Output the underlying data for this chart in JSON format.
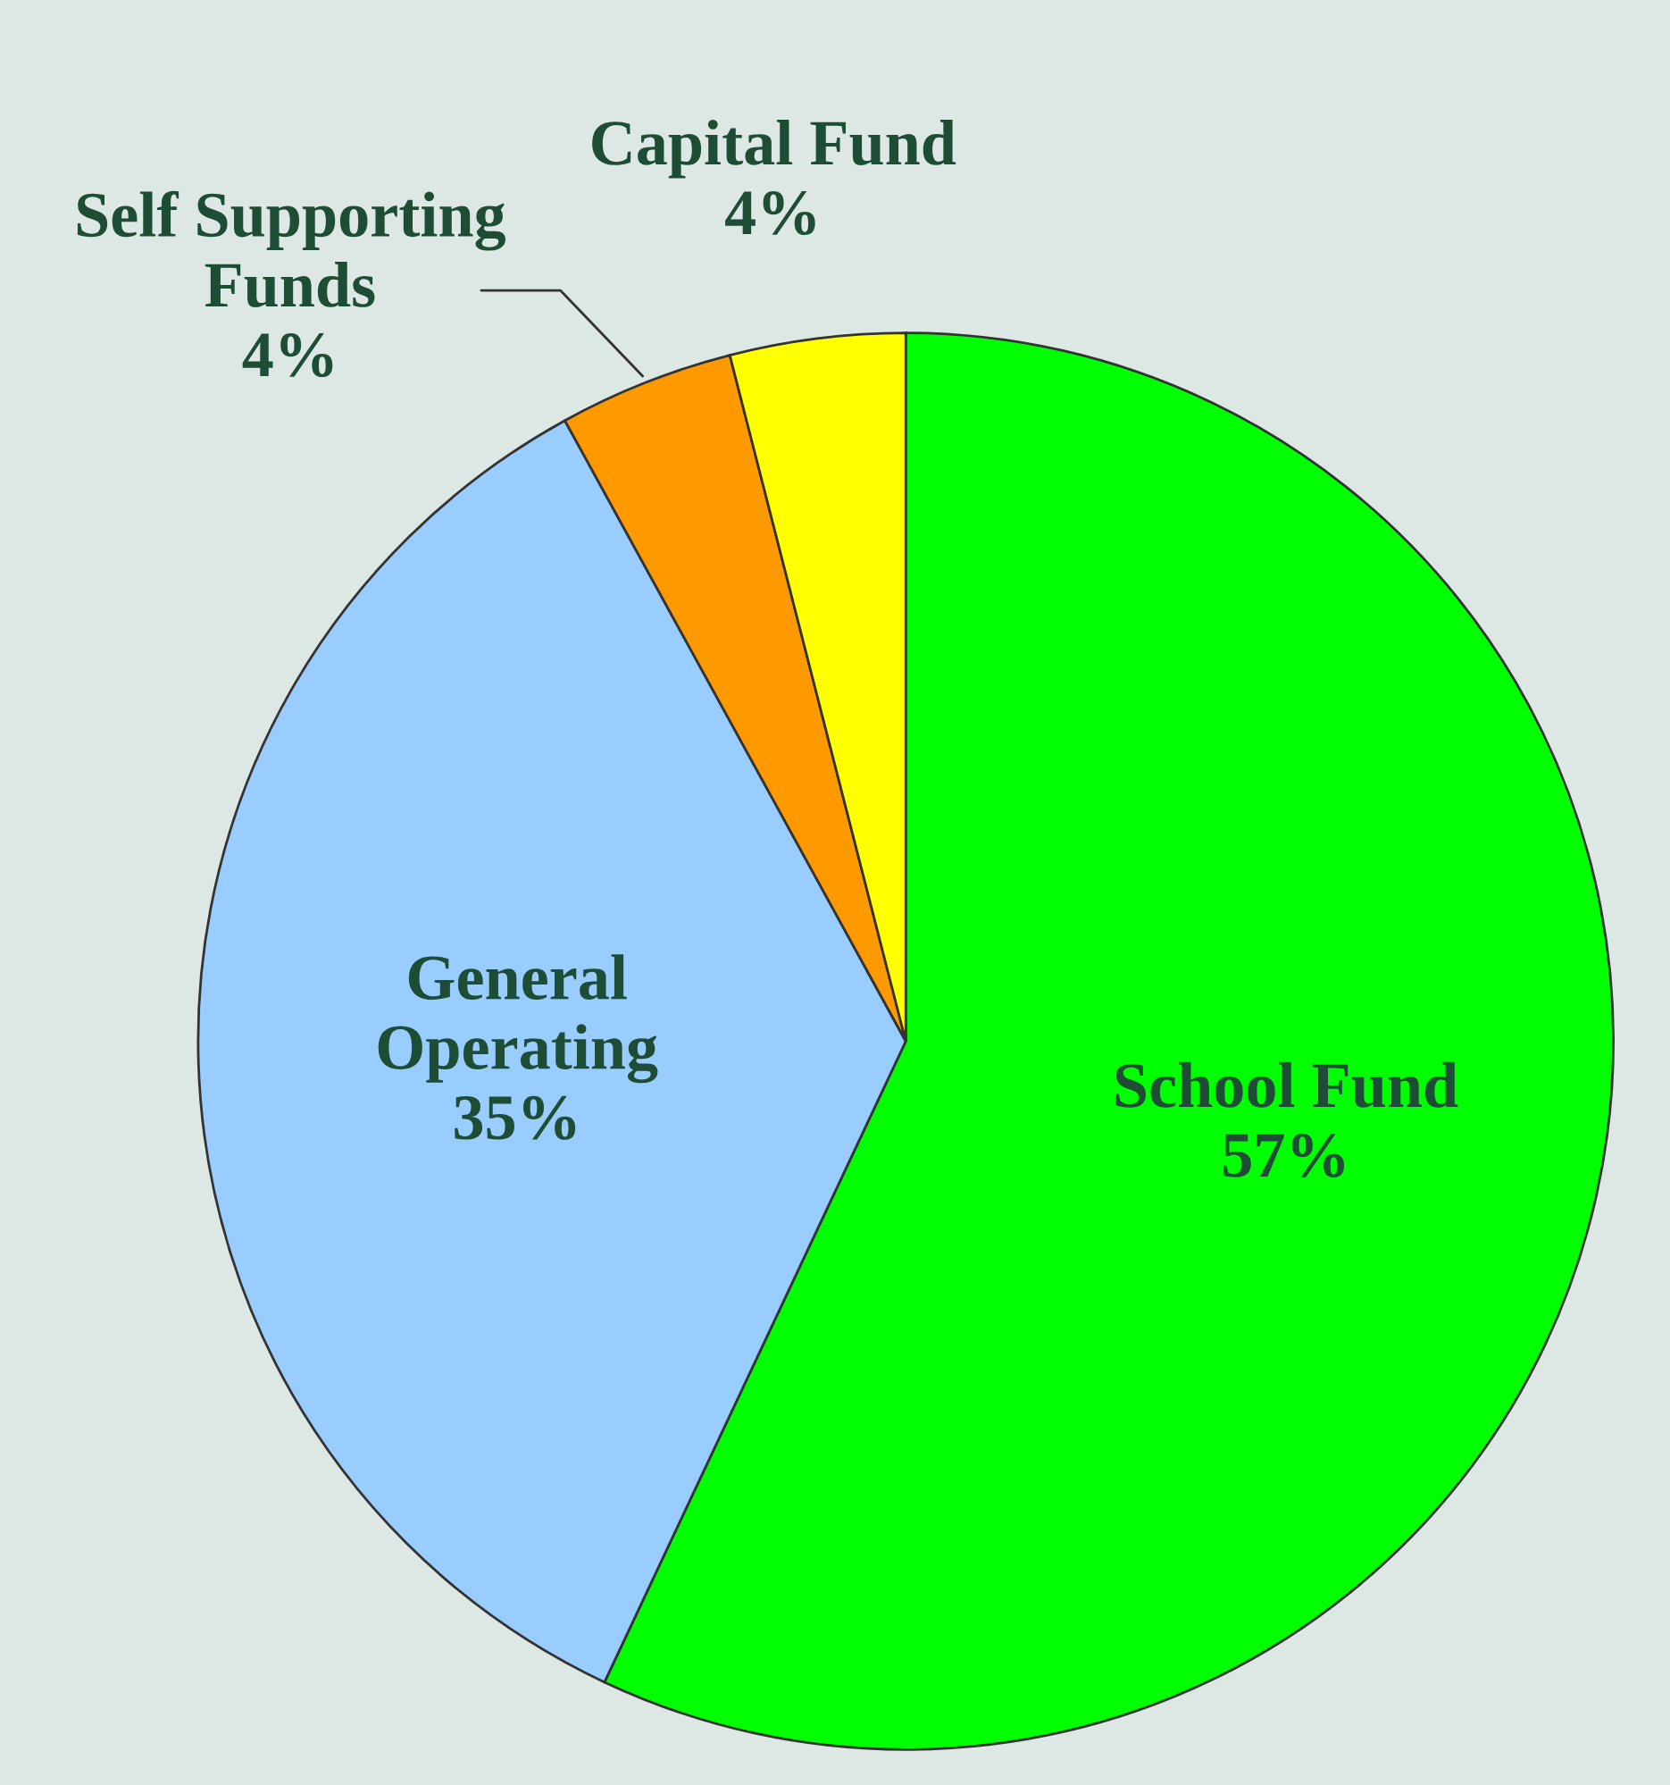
{
  "chart_data": {
    "type": "pie",
    "categories": [
      "School Fund",
      "General\nOperating",
      "Self Supporting\nFunds",
      "Capital Fund"
    ],
    "values": [
      57,
      35,
      4,
      4
    ],
    "value_labels": [
      "57%",
      "35%",
      "4%",
      "4%"
    ],
    "colors": [
      "#00ff00",
      "#99ccff",
      "#ff9900",
      "#ffff00"
    ]
  }
}
